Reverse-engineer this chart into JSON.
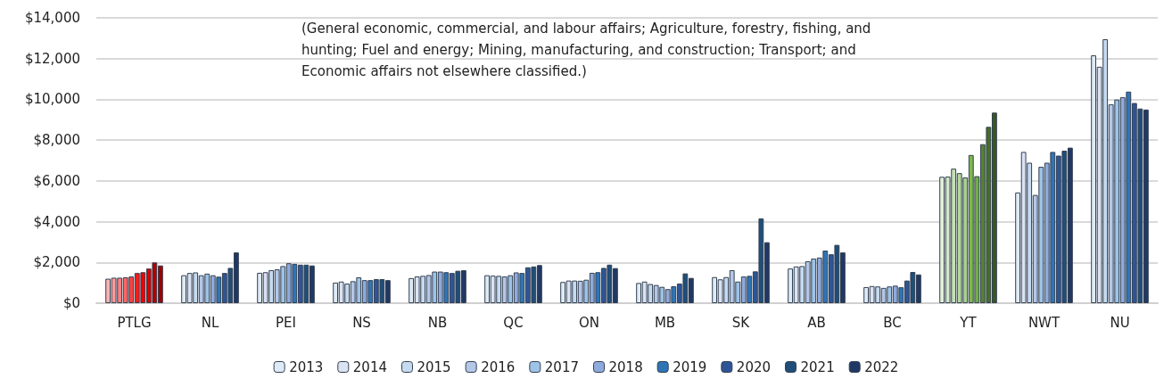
{
  "chart_data": {
    "type": "bar",
    "categories": [
      "PTLG",
      "NL",
      "PEI",
      "NS",
      "NB",
      "QC",
      "ON",
      "MB",
      "SK",
      "AB",
      "BC",
      "YT",
      "NWT",
      "NU"
    ],
    "annotations": [
      "(General economic, commercial, and labour affairs; Agriculture, forestry, fishing, and hunting; Fuel and energy; Mining, manufacturing, and construction; Transport; and Economic affairs not elsewhere classified.)"
    ],
    "ylim": [
      0,
      14000
    ],
    "yticks": [
      {
        "value": 0,
        "label": "$0"
      },
      {
        "value": 2000,
        "label": "$2,000"
      },
      {
        "value": 4000,
        "label": "$4,000"
      },
      {
        "value": 6000,
        "label": "$6,000"
      },
      {
        "value": 8000,
        "label": "$8,000"
      },
      {
        "value": 10000,
        "label": "$10,000"
      },
      {
        "value": 12000,
        "label": "$12,000"
      },
      {
        "value": 14000,
        "label": "$14,000"
      }
    ],
    "grid": "y",
    "legend": "bottom",
    "series": [
      {
        "name": "2013",
        "color": "#deebf7",
        "values": [
          1200,
          1370,
          1490,
          1010,
          1230,
          1370,
          1040,
          990,
          1280,
          1700,
          790,
          6200,
          5430,
          12160
        ],
        "colors": [
          "#ffb3b3",
          "#deebf7",
          "#deebf7",
          "#deebf7",
          "#deebf7",
          "#deebf7",
          "#deebf7",
          "#deebf7",
          "#deebf7",
          "#deebf7",
          "#deebf7",
          "#e2f0d9",
          "#deebf7",
          "#deebf7"
        ]
      },
      {
        "name": "2014",
        "color": "#dae3f3",
        "values": [
          1250,
          1480,
          1520,
          1060,
          1310,
          1350,
          1110,
          1060,
          1170,
          1800,
          840,
          6210,
          7420,
          11600
        ],
        "colors": [
          "#ff9999",
          "#dae3f3",
          "#dae3f3",
          "#dae3f3",
          "#dae3f3",
          "#dae3f3",
          "#dae3f3",
          "#dae3f3",
          "#dae3f3",
          "#dae3f3",
          "#dae3f3",
          "#d5e8c8",
          "#dae3f3",
          "#dae3f3"
        ]
      },
      {
        "name": "2015",
        "color": "#c6dbef",
        "values": [
          1250,
          1510,
          1620,
          960,
          1340,
          1340,
          1110,
          940,
          1280,
          1820,
          820,
          6600,
          6890,
          12950
        ],
        "colors": [
          "#ff8080",
          "#c6dbef",
          "#c6dbef",
          "#c6dbef",
          "#c6dbef",
          "#c6dbef",
          "#c6dbef",
          "#c6dbef",
          "#c6dbef",
          "#c6dbef",
          "#c6dbef",
          "#c5e0b4",
          "#c6dbef",
          "#c6dbef"
        ]
      },
      {
        "name": "2016",
        "color": "#b4c7e7",
        "values": [
          1270,
          1370,
          1660,
          1080,
          1380,
          1310,
          1100,
          890,
          1620,
          2060,
          750,
          6380,
          5310,
          9760
        ],
        "colors": [
          "#ff6666",
          "#b4c7e7",
          "#b4c7e7",
          "#b4c7e7",
          "#b4c7e7",
          "#b4c7e7",
          "#b4c7e7",
          "#b4c7e7",
          "#b4c7e7",
          "#b4c7e7",
          "#b4c7e7",
          "#b4d89c",
          "#b4c7e7",
          "#b4c7e7"
        ]
      },
      {
        "name": "2017",
        "color": "#9dc3e6",
        "values": [
          1310,
          1450,
          1820,
          1270,
          1550,
          1370,
          1150,
          800,
          1060,
          2190,
          820,
          6170,
          6690,
          9990
        ],
        "colors": [
          "#ff4040",
          "#9dc3e6",
          "#9dc3e6",
          "#9dc3e6",
          "#9dc3e6",
          "#9dc3e6",
          "#9dc3e6",
          "#9dc3e6",
          "#9dc3e6",
          "#9dc3e6",
          "#9dc3e6",
          "#a9d18e",
          "#9dc3e6",
          "#9dc3e6"
        ]
      },
      {
        "name": "2018",
        "color": "#8faadc",
        "values": [
          1480,
          1370,
          1960,
          1130,
          1550,
          1510,
          1490,
          690,
          1310,
          2240,
          860,
          7270,
          6890,
          10110
        ],
        "colors": [
          "#ff1a1a",
          "#8faadc",
          "#8faadc",
          "#8faadc",
          "#8faadc",
          "#8faadc",
          "#8faadc",
          "#8faadc",
          "#8faadc",
          "#8faadc",
          "#8faadc",
          "#7fb84e",
          "#8faadc",
          "#8faadc"
        ]
      },
      {
        "name": "2019",
        "color": "#2e75b6",
        "values": [
          1520,
          1300,
          1930,
          1130,
          1520,
          1480,
          1520,
          830,
          1340,
          2580,
          780,
          6230,
          7420,
          10380
        ],
        "colors": [
          "#f00000",
          "#2e75b6",
          "#2e75b6",
          "#2e75b6",
          "#2e75b6",
          "#2e75b6",
          "#2e75b6",
          "#2e75b6",
          "#2e75b6",
          "#2e75b6",
          "#2e75b6",
          "#70ad47",
          "#2e75b6",
          "#2e75b6"
        ]
      },
      {
        "name": "2020",
        "color": "#2f5597",
        "values": [
          1700,
          1480,
          1890,
          1180,
          1480,
          1760,
          1730,
          960,
          1560,
          2400,
          1110,
          7800,
          7240,
          9820
        ],
        "colors": [
          "#d90000",
          "#2f5597",
          "#2f5597",
          "#2f5597",
          "#2f5597",
          "#2f5597",
          "#2f5597",
          "#2f5597",
          "#2f5597",
          "#2f5597",
          "#2f5597",
          "#548235",
          "#2f5597",
          "#2f5597"
        ]
      },
      {
        "name": "2021",
        "color": "#1f4e79",
        "values": [
          2000,
          1730,
          1890,
          1180,
          1590,
          1800,
          1890,
          1460,
          4160,
          2860,
          1530,
          8650,
          7480,
          9550
        ],
        "colors": [
          "#b30000",
          "#1f4e79",
          "#1f4e79",
          "#1f4e79",
          "#1f4e79",
          "#1f4e79",
          "#1f4e79",
          "#1f4e79",
          "#1f4e79",
          "#1f4e79",
          "#1f4e79",
          "#466d2b",
          "#1f4e79",
          "#1f4e79"
        ]
      },
      {
        "name": "2022",
        "color": "#203864",
        "values": [
          1850,
          2490,
          1850,
          1130,
          1620,
          1870,
          1720,
          1240,
          2990,
          2490,
          1410,
          9350,
          7630,
          9500
        ],
        "colors": [
          "#a00000",
          "#203864",
          "#203864",
          "#203864",
          "#203864",
          "#203864",
          "#203864",
          "#203864",
          "#203864",
          "#203864",
          "#203864",
          "#385723",
          "#203864",
          "#203864"
        ]
      }
    ]
  }
}
